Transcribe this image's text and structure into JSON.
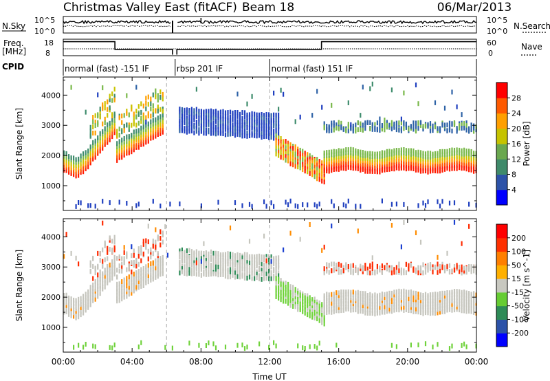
{
  "header": {
    "title": "Christmas Valley East (fitACF)",
    "beam": "Beam 18",
    "date": "06/Mar/2013"
  },
  "params": {
    "nsky_label": "N.Sky",
    "nsearch_label": "N.Search",
    "freq_label_1": "Freq.",
    "freq_label_2": "[MHz]",
    "nave_label": "Nave",
    "cpid_label": "CPID",
    "sky_ticks": [
      "10^5",
      "10^0"
    ],
    "sky_ticks_right": [
      "10^5",
      "10^0"
    ],
    "freq_ticks": [
      "18",
      "8"
    ],
    "nave_ticks": [
      "60",
      "0"
    ]
  },
  "cpid_segments": [
    {
      "label": "normal (fast) -151 IF",
      "start_h": 0.0,
      "end_h": 6.5
    },
    {
      "label": "rbsp 201 IF",
      "start_h": 6.5,
      "end_h": 12.0
    },
    {
      "label": "normal (fast) 151 IF",
      "start_h": 12.0,
      "end_h": 24.0
    }
  ],
  "chart_data": [
    {
      "type": "heatmap",
      "panel": "power",
      "ylabel": "Slant Range [km]",
      "xlabel": "Time UT",
      "y_ticks": [
        1000,
        2000,
        3000,
        4000
      ],
      "ylim": [
        180,
        4600
      ],
      "x_ticks": [
        "00:00",
        "04:00",
        "08:00",
        "12:00",
        "16:00",
        "20:00",
        "00:00"
      ],
      "xlim_hours": [
        0,
        24
      ],
      "colorbar": {
        "label": "Power [dB]",
        "ticks": [
          "4",
          "8",
          "12",
          "16",
          "20",
          "24",
          "28"
        ],
        "colors": [
          "#0000ff",
          "#2c52a8",
          "#3f8a6a",
          "#6aa84f",
          "#c6c300",
          "#ff9f00",
          "#ff5a00",
          "#ff0000"
        ]
      }
    },
    {
      "type": "heatmap",
      "panel": "velocity",
      "ylabel": "Slant Range [km]",
      "xlabel": "Time UT",
      "y_ticks": [
        1000,
        2000,
        3000,
        4000
      ],
      "ylim": [
        180,
        4600
      ],
      "x_ticks": [
        "00:00",
        "04:00",
        "08:00",
        "12:00",
        "16:00",
        "20:00",
        "00:00"
      ],
      "xlim_hours": [
        0,
        24
      ],
      "colorbar": {
        "label": "Velocity [m s^-1]",
        "ticks": [
          "200",
          "100",
          "50",
          "15",
          "-15",
          "-50",
          "-100",
          "-200"
        ],
        "colors": [
          "#0000ff",
          "#2c52a8",
          "#2e8b57",
          "#66cc33",
          "#c8c8c0",
          "#ffb000",
          "#ff7f00",
          "#ff3000",
          "#ff0000"
        ]
      }
    }
  ]
}
